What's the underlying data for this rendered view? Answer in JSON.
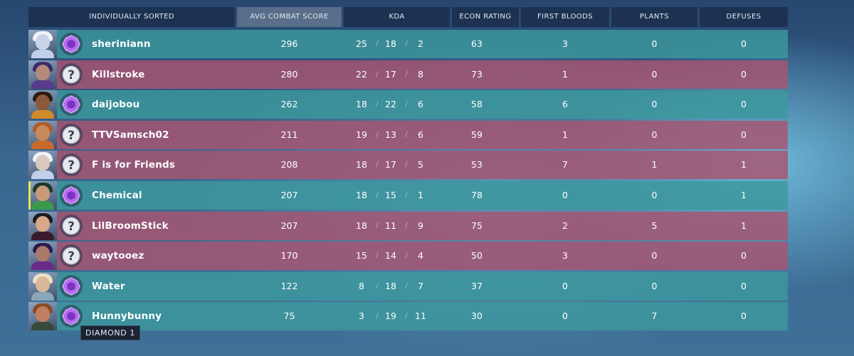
{
  "header": {
    "sort_label": "INDIVIDUALLY SORTED",
    "columns": [
      "AVG COMBAT SCORE",
      "KDA",
      "ECON RATING",
      "FIRST BLOODS",
      "PLANTS",
      "DEFUSES"
    ],
    "active_column": "AVG COMBAT SCORE"
  },
  "colors": {
    "teal_row": "#3c989e",
    "red_row": "#a85470",
    "header_bg": "#1a2c4a",
    "header_active": "#5c718c"
  },
  "players": [
    {
      "name": "sheriniann",
      "team": "teal",
      "agent_icon": "agent-portrait-icon",
      "rank_icon": "diamond-rank-icon",
      "acs": "296",
      "kills": "25",
      "deaths": "18",
      "assists": "2",
      "econ": "63",
      "first_bloods": "3",
      "plants": "0",
      "defuses": "0"
    },
    {
      "name": "Killstroke",
      "team": "red",
      "agent_icon": "agent-portrait-icon",
      "rank_icon": "unknown-rank-icon",
      "acs": "280",
      "kills": "22",
      "deaths": "17",
      "assists": "8",
      "econ": "73",
      "first_bloods": "1",
      "plants": "0",
      "defuses": "0"
    },
    {
      "name": "daijobou",
      "team": "teal",
      "agent_icon": "agent-portrait-icon",
      "rank_icon": "diamond-rank-icon",
      "acs": "262",
      "kills": "18",
      "deaths": "22",
      "assists": "6",
      "econ": "58",
      "first_bloods": "6",
      "plants": "0",
      "defuses": "0"
    },
    {
      "name": "TTVSamsch02",
      "team": "red",
      "agent_icon": "agent-portrait-icon",
      "rank_icon": "unknown-rank-icon",
      "acs": "211",
      "kills": "19",
      "deaths": "13",
      "assists": "6",
      "econ": "59",
      "first_bloods": "1",
      "plants": "0",
      "defuses": "0"
    },
    {
      "name": "F is for Friends",
      "team": "red",
      "agent_icon": "agent-portrait-icon",
      "rank_icon": "unknown-rank-icon",
      "acs": "208",
      "kills": "18",
      "deaths": "17",
      "assists": "5",
      "econ": "53",
      "first_bloods": "7",
      "plants": "1",
      "defuses": "1"
    },
    {
      "name": "Chemical",
      "team": "teal",
      "agent_icon": "agent-portrait-icon",
      "rank_icon": "diamond-rank-icon",
      "acs": "207",
      "kills": "18",
      "deaths": "15",
      "assists": "1",
      "econ": "78",
      "first_bloods": "0",
      "plants": "0",
      "defuses": "1"
    },
    {
      "name": "LilBroomStick",
      "team": "red",
      "agent_icon": "agent-portrait-icon",
      "rank_icon": "unknown-rank-icon",
      "acs": "207",
      "kills": "18",
      "deaths": "11",
      "assists": "9",
      "econ": "75",
      "first_bloods": "2",
      "plants": "5",
      "defuses": "1"
    },
    {
      "name": "waytooez",
      "team": "red",
      "agent_icon": "agent-portrait-icon",
      "rank_icon": "unknown-rank-icon",
      "acs": "170",
      "kills": "15",
      "deaths": "14",
      "assists": "4",
      "econ": "50",
      "first_bloods": "3",
      "plants": "0",
      "defuses": "0"
    },
    {
      "name": "Water",
      "team": "teal",
      "agent_icon": "agent-portrait-icon",
      "rank_icon": "diamond-rank-icon",
      "acs": "122",
      "kills": "8",
      "deaths": "18",
      "assists": "7",
      "econ": "37",
      "first_bloods": "0",
      "plants": "0",
      "defuses": "0"
    },
    {
      "name": "Hunnybunny",
      "team": "teal",
      "agent_icon": "agent-portrait-icon",
      "rank_icon": "diamond-rank-icon",
      "acs": "75",
      "kills": "3",
      "deaths": "19",
      "assists": "11",
      "econ": "30",
      "first_bloods": "0",
      "plants": "7",
      "defuses": "0"
    }
  ],
  "tooltip": {
    "text": "DIAMOND 1"
  }
}
